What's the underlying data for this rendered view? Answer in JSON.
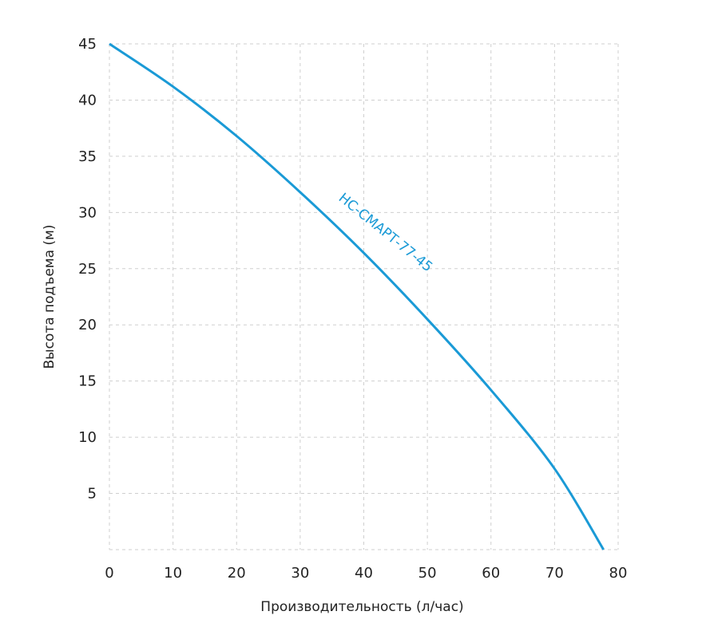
{
  "chart_data": {
    "type": "line",
    "title": "",
    "xlabel": "Производительность (л/час)",
    "ylabel": "Высота подъема (м)",
    "xlim": [
      0,
      80
    ],
    "ylim": [
      0,
      45
    ],
    "xticks": [
      0,
      10,
      20,
      30,
      40,
      50,
      60,
      70,
      80
    ],
    "yticks": [
      5,
      10,
      15,
      20,
      25,
      30,
      35,
      40,
      45
    ],
    "grid": true,
    "series": [
      {
        "name": "НС-СМАРТ-77-45",
        "color": "#1a9ad6",
        "x": [
          0,
          10,
          20,
          30,
          40,
          50,
          60,
          70,
          77.7
        ],
        "y": [
          45,
          41.2,
          36.8,
          31.8,
          26.4,
          20.5,
          14.2,
          7.2,
          0
        ]
      }
    ]
  }
}
